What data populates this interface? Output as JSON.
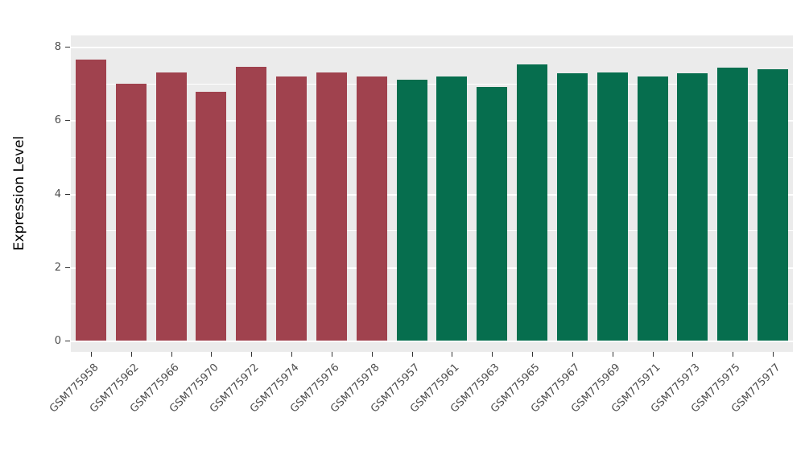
{
  "chart_data": {
    "type": "bar",
    "title": "",
    "xlabel": "",
    "ylabel": "Expression Level",
    "ylim": [
      0,
      8
    ],
    "yticks": [
      0,
      2,
      4,
      6,
      8
    ],
    "yticks_minor": [
      1,
      3,
      5,
      7
    ],
    "grid": true,
    "legend": "none",
    "categories": [
      "GSM775958",
      "GSM775962",
      "GSM775966",
      "GSM775970",
      "GSM775972",
      "GSM775974",
      "GSM775976",
      "GSM775978",
      "GSM775957",
      "GSM775961",
      "GSM775963",
      "GSM775965",
      "GSM775967",
      "GSM775969",
      "GSM775971",
      "GSM775973",
      "GSM775975",
      "GSM775977"
    ],
    "values": [
      7.65,
      7.0,
      7.3,
      6.78,
      7.45,
      7.18,
      7.3,
      7.2,
      7.1,
      7.2,
      6.9,
      7.52,
      7.28,
      7.3,
      7.2,
      7.28,
      7.42,
      7.38
    ],
    "colors": [
      "#A0424E",
      "#A0424E",
      "#A0424E",
      "#A0424E",
      "#A0424E",
      "#A0424E",
      "#A0424E",
      "#A0424E",
      "#066E4E",
      "#066E4E",
      "#066E4E",
      "#066E4E",
      "#066E4E",
      "#066E4E",
      "#066E4E",
      "#066E4E",
      "#066E4E",
      "#066E4E"
    ],
    "group_palette": {
      "group_1_color": "#A0424E",
      "group_2_color": "#066E4E"
    },
    "panel_background": "#EBEBEB",
    "grid_color": "#FFFFFF"
  }
}
